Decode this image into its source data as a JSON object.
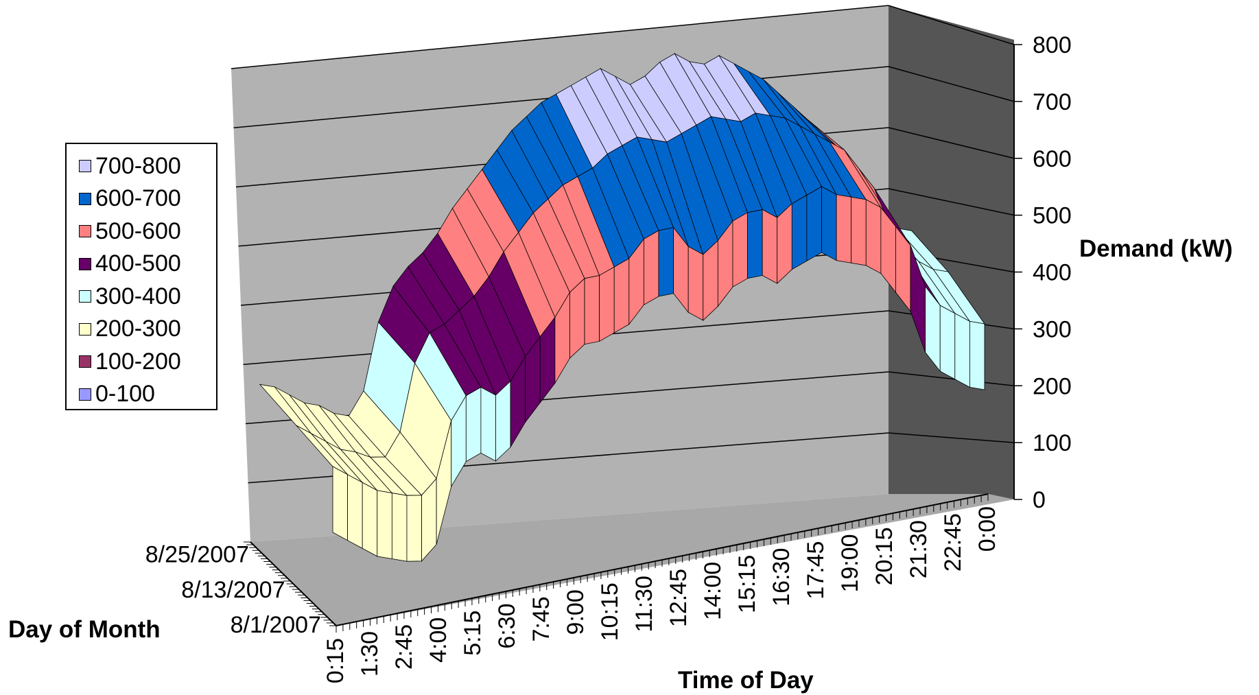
{
  "chart_data": {
    "type": "surface",
    "title": "",
    "xlabel": "Time of Day",
    "ylabel": "Day of Month",
    "zlabel": "Demand (kW)",
    "zlim": [
      0,
      800
    ],
    "z_ticks": [
      "0",
      "100",
      "200",
      "300",
      "400",
      "500",
      "600",
      "700",
      "800"
    ],
    "x_ticks": [
      "0:15",
      "1:30",
      "2:45",
      "4:00",
      "5:15",
      "6:30",
      "7:45",
      "9:00",
      "10:15",
      "11:30",
      "12:45",
      "14:00",
      "15:15",
      "16:30",
      "17:45",
      "19:00",
      "20:15",
      "21:30",
      "22:45",
      "0:00"
    ],
    "y_ticks": [
      "8/1/2007",
      "8/13/2007",
      "8/25/2007"
    ],
    "legend": [
      {
        "label": "700-800",
        "color": "#CCCCFF"
      },
      {
        "label": "600-700",
        "color": "#0066CC"
      },
      {
        "label": "500-600",
        "color": "#FF8080"
      },
      {
        "label": "400-500",
        "color": "#660066"
      },
      {
        "label": "300-400",
        "color": "#CCFFFF"
      },
      {
        "label": "200-300",
        "color": "#FFFFCC"
      },
      {
        "label": "100-200",
        "color": "#993366"
      },
      {
        "label": "0-100",
        "color": "#9999FF"
      }
    ],
    "legend_position": "left",
    "grid": true,
    "series": [
      {
        "day": "8/1/2007",
        "values": [
          290,
          270,
          250,
          230,
          220,
          210,
          205,
          230,
          330,
          370,
          380,
          360,
          380,
          420,
          450,
          480,
          520,
          540,
          540,
          550,
          560,
          590,
          600,
          600,
          560,
          540,
          560,
          590,
          600,
          600,
          580,
          600,
          610,
          620,
          600,
          590,
          580,
          560,
          520,
          480,
          400,
          360,
          340,
          320,
          310
        ]
      },
      {
        "day": "8/13/2007",
        "values": [
          300,
          280,
          260,
          240,
          230,
          215,
          210,
          250,
          370,
          420,
          430,
          450,
          470,
          500,
          540,
          570,
          600,
          620,
          640,
          650,
          660,
          680,
          690,
          700,
          690,
          680,
          690,
          700,
          710,
          700,
          690,
          700,
          690,
          680,
          660,
          640,
          620,
          600,
          560,
          520,
          450,
          400,
          370,
          350,
          340
        ]
      },
      {
        "day": "8/25/2007",
        "values": [
          310,
          300,
          280,
          260,
          250,
          230,
          220,
          260,
          380,
          440,
          470,
          490,
          520,
          560,
          590,
          620,
          650,
          680,
          700,
          720,
          730,
          740,
          750,
          760,
          740,
          720,
          730,
          750,
          760,
          740,
          730,
          740,
          720,
          700,
          680,
          650,
          620,
          590,
          560,
          530,
          470,
          420,
          380,
          360,
          350
        ]
      }
    ]
  }
}
